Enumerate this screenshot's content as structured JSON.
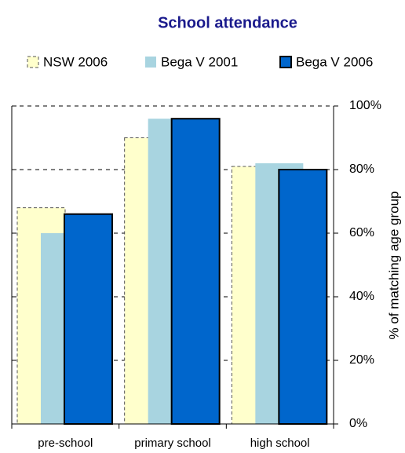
{
  "chart_data": {
    "type": "bar",
    "title": "School attendance",
    "categories": [
      "pre-school",
      "primary school",
      "high school"
    ],
    "series": [
      {
        "name": "NSW 2006",
        "color": "#ffffcc",
        "values": [
          68,
          90,
          81
        ]
      },
      {
        "name": "Bega V 2001",
        "color": "#a8d4e0",
        "values": [
          60,
          96,
          82
        ]
      },
      {
        "name": "Bega V 2006",
        "color": "#0066cc",
        "values": [
          66,
          96,
          80
        ]
      }
    ],
    "y_axis_label": "% of matching age group",
    "ylim": [
      0,
      100
    ],
    "yticks": [
      {
        "value": 0,
        "label": "0%"
      },
      {
        "value": 20,
        "label": "20%"
      },
      {
        "value": 40,
        "label": "40%"
      },
      {
        "value": 60,
        "label": "60%"
      },
      {
        "value": 80,
        "label": "80%"
      },
      {
        "value": 100,
        "label": "100%"
      }
    ],
    "grid": true,
    "legend": "top"
  }
}
